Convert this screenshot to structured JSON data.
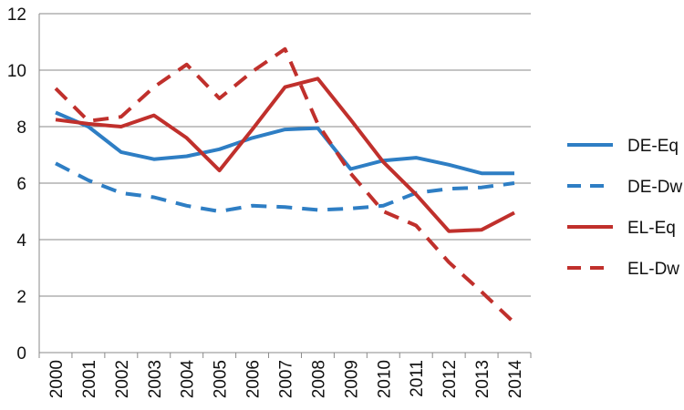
{
  "chart_data": {
    "type": "line",
    "title": "",
    "xlabel": "",
    "ylabel": "",
    "x": [
      "2000",
      "2001",
      "2002",
      "2003",
      "2004",
      "2005",
      "2006",
      "2007",
      "2008",
      "2009",
      "2010",
      "2011",
      "2012",
      "2013",
      "2014"
    ],
    "ylim": [
      0,
      12
    ],
    "yticks": [
      0,
      2,
      4,
      6,
      8,
      10,
      12
    ],
    "grid": "horizontal",
    "legend_position": "right",
    "series": [
      {
        "name": "DE-Eq",
        "color": "#2E7EC4",
        "style": "solid",
        "values": [
          8.5,
          8.0,
          7.1,
          6.85,
          6.95,
          7.2,
          7.6,
          7.9,
          7.95,
          6.5,
          6.8,
          6.9,
          6.65,
          6.35,
          6.35
        ]
      },
      {
        "name": "DE-Dw",
        "color": "#2E7EC4",
        "style": "dashed",
        "values": [
          6.7,
          6.1,
          5.65,
          5.5,
          5.2,
          5.0,
          5.2,
          5.15,
          5.05,
          5.1,
          5.2,
          5.65,
          5.8,
          5.85,
          6.0
        ]
      },
      {
        "name": "EL-Eq",
        "color": "#C0302C",
        "style": "solid",
        "values": [
          8.25,
          8.1,
          8.0,
          8.4,
          7.6,
          6.45,
          7.9,
          9.4,
          9.7,
          8.25,
          6.75,
          5.6,
          4.3,
          4.35,
          4.95
        ]
      },
      {
        "name": "EL-Dw",
        "color": "#C0302C",
        "style": "dashed",
        "values": [
          9.35,
          8.2,
          8.35,
          9.4,
          10.2,
          9.0,
          9.95,
          10.75,
          8.1,
          6.35,
          5.0,
          4.5,
          3.2,
          2.15,
          1.05
        ]
      }
    ]
  }
}
